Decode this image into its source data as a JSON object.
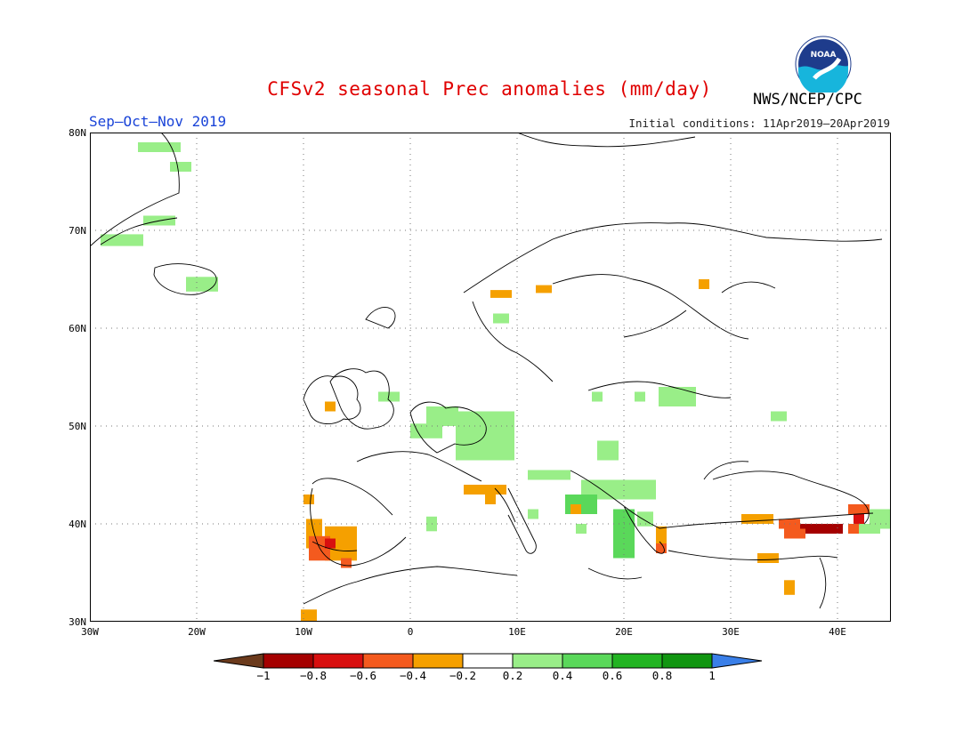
{
  "header": {
    "title": "CFSv2 seasonal Prec anomalies (mm/day)",
    "season": "Sep–Oct–Nov 2019",
    "initial_conditions": "Initial conditions: 11Apr2019–20Apr2019",
    "org": "NWS/NCEP/CPC",
    "logo_text": "NOAA"
  },
  "map": {
    "lon_range": [
      -30,
      45
    ],
    "lat_range": [
      30,
      80
    ],
    "x_ticks": [
      "30W",
      "20W",
      "10W",
      "0",
      "10E",
      "20E",
      "30E",
      "40E"
    ],
    "y_ticks": [
      "30N",
      "40N",
      "50N",
      "60N",
      "70N",
      "80N"
    ],
    "grid": "dotted"
  },
  "colorbar": {
    "labels": [
      "−1",
      "−0.8",
      "−0.6",
      "−0.4",
      "−0.2",
      "0.2",
      "0.4",
      "0.6",
      "0.8",
      "1"
    ],
    "colors": [
      "#6b3a1c",
      "#a50000",
      "#d80f0f",
      "#f45a1e",
      "#f5a000",
      "#ffffff",
      "#99ee88",
      "#5ad85a",
      "#22b422",
      "#119611",
      "#3a7fe8"
    ]
  },
  "anomalies": {
    "units": "mm/day",
    "cells": [
      {
        "lon": -23.5,
        "lat": 78.5,
        "w": 4,
        "h": 1,
        "level": 0.3
      },
      {
        "lon": -21.5,
        "lat": 76.5,
        "w": 2,
        "h": 1,
        "level": 0.3
      },
      {
        "lon": -23.5,
        "lat": 71.0,
        "w": 3,
        "h": 1,
        "level": 0.3
      },
      {
        "lon": -27.0,
        "lat": 69.0,
        "w": 4,
        "h": 1.2,
        "level": 0.3
      },
      {
        "lon": -19.5,
        "lat": 64.5,
        "w": 3,
        "h": 1.5,
        "level": 0.3
      },
      {
        "lon": 8.5,
        "lat": 63.5,
        "w": 2,
        "h": 0.8,
        "level": -0.3
      },
      {
        "lon": 12.5,
        "lat": 64.0,
        "w": 1.5,
        "h": 0.8,
        "level": -0.3
      },
      {
        "lon": 27.5,
        "lat": 64.5,
        "w": 1,
        "h": 1,
        "level": -0.3
      },
      {
        "lon": 8.5,
        "lat": 61.0,
        "w": 1.5,
        "h": 1,
        "level": 0.3
      },
      {
        "lon": -7.5,
        "lat": 52.0,
        "w": 1,
        "h": 1,
        "level": -0.3
      },
      {
        "lon": -2.0,
        "lat": 53.0,
        "w": 2,
        "h": 1,
        "level": 0.3
      },
      {
        "lon": 3.0,
        "lat": 51.0,
        "w": 3,
        "h": 2,
        "level": 0.3
      },
      {
        "lon": 1.5,
        "lat": 49.5,
        "w": 3,
        "h": 1.5,
        "level": 0.3
      },
      {
        "lon": 7.0,
        "lat": 49.0,
        "w": 5.5,
        "h": 5,
        "level": 0.3
      },
      {
        "lon": 17.5,
        "lat": 53.0,
        "w": 1,
        "h": 1,
        "level": 0.3
      },
      {
        "lon": 21.5,
        "lat": 53.0,
        "w": 1,
        "h": 1,
        "level": 0.3
      },
      {
        "lon": 25.0,
        "lat": 53.0,
        "w": 3.5,
        "h": 2,
        "level": 0.3
      },
      {
        "lon": 34.5,
        "lat": 51.0,
        "w": 1.5,
        "h": 1,
        "level": 0.3
      },
      {
        "lon": 18.5,
        "lat": 47.5,
        "w": 2,
        "h": 2,
        "level": 0.3
      },
      {
        "lon": 13.0,
        "lat": 45.0,
        "w": 4,
        "h": 1,
        "level": 0.3
      },
      {
        "lon": 19.5,
        "lat": 43.5,
        "w": 7,
        "h": 2,
        "level": 0.3
      },
      {
        "lon": 16.0,
        "lat": 42.0,
        "w": 3,
        "h": 2,
        "level": 0.4
      },
      {
        "lon": 7.0,
        "lat": 43.5,
        "w": 4,
        "h": 1,
        "level": -0.3
      },
      {
        "lon": 7.5,
        "lat": 42.5,
        "w": 1,
        "h": 1,
        "level": -0.3
      },
      {
        "lon": 15.5,
        "lat": 41.5,
        "w": 1,
        "h": 1,
        "level": -0.3
      },
      {
        "lon": 2.0,
        "lat": 40.0,
        "w": 1,
        "h": 1.5,
        "level": 0.3
      },
      {
        "lon": 11.5,
        "lat": 41.0,
        "w": 1,
        "h": 1,
        "level": 0.3
      },
      {
        "lon": 16.0,
        "lat": 39.5,
        "w": 1,
        "h": 1,
        "level": 0.3
      },
      {
        "lon": 20.0,
        "lat": 39.0,
        "w": 2,
        "h": 5,
        "level": 0.5
      },
      {
        "lon": 22.0,
        "lat": 40.5,
        "w": 1.5,
        "h": 1.5,
        "level": 0.3
      },
      {
        "lon": 23.5,
        "lat": 38.5,
        "w": 1,
        "h": 2.5,
        "level": -0.3
      },
      {
        "lon": 23.5,
        "lat": 37.5,
        "w": 1,
        "h": 1,
        "level": -0.5
      },
      {
        "lon": -9.5,
        "lat": 42.5,
        "w": 1,
        "h": 1,
        "level": -0.3
      },
      {
        "lon": -9.0,
        "lat": 39.0,
        "w": 1.5,
        "h": 3,
        "level": -0.3
      },
      {
        "lon": -6.5,
        "lat": 38.0,
        "w": 3,
        "h": 3.5,
        "level": -0.3
      },
      {
        "lon": -8.5,
        "lat": 37.5,
        "w": 2,
        "h": 2.5,
        "level": -0.5
      },
      {
        "lon": -7.5,
        "lat": 38.0,
        "w": 1,
        "h": 1,
        "level": -0.7
      },
      {
        "lon": -6.0,
        "lat": 36.0,
        "w": 1,
        "h": 1,
        "level": -0.5
      },
      {
        "lon": -9.5,
        "lat": 30.5,
        "w": 1.5,
        "h": 1.5,
        "level": -0.3
      },
      {
        "lon": 32.5,
        "lat": 40.5,
        "w": 3,
        "h": 1,
        "level": -0.3
      },
      {
        "lon": 35.5,
        "lat": 40.0,
        "w": 2,
        "h": 1,
        "level": -0.5
      },
      {
        "lon": 38.5,
        "lat": 39.5,
        "w": 4,
        "h": 1,
        "level": -0.9
      },
      {
        "lon": 36.0,
        "lat": 39.0,
        "w": 2,
        "h": 1,
        "level": -0.5
      },
      {
        "lon": 41.5,
        "lat": 39.5,
        "w": 1,
        "h": 1,
        "level": -0.5
      },
      {
        "lon": 42.0,
        "lat": 41.5,
        "w": 2,
        "h": 1,
        "level": -0.4
      },
      {
        "lon": 42.0,
        "lat": 40.5,
        "w": 1,
        "h": 1,
        "level": -0.6
      },
      {
        "lon": 44.0,
        "lat": 40.5,
        "w": 2,
        "h": 2,
        "level": 0.3
      },
      {
        "lon": 43.0,
        "lat": 39.5,
        "w": 2,
        "h": 1,
        "level": 0.3
      },
      {
        "lon": 33.5,
        "lat": 36.5,
        "w": 2,
        "h": 1,
        "level": -0.3
      },
      {
        "lon": 35.5,
        "lat": 33.5,
        "w": 1,
        "h": 1.5,
        "level": -0.3
      }
    ]
  }
}
